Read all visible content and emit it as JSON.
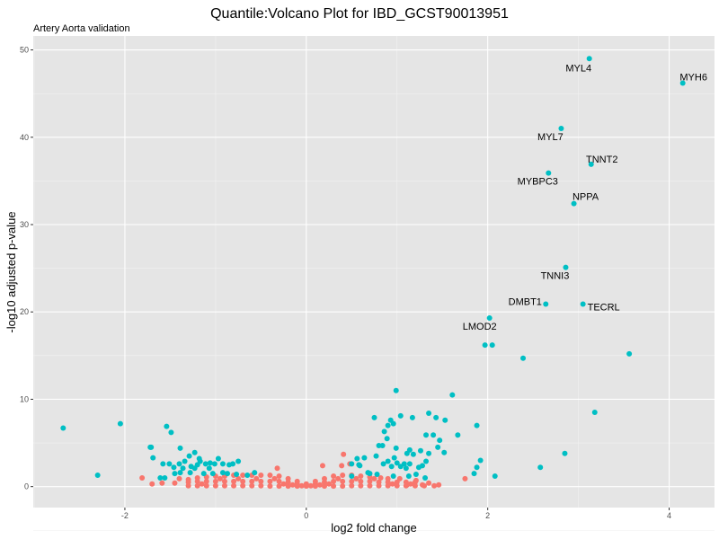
{
  "chart_data": {
    "type": "scatter",
    "title": "Quantile:Volcano Plot for IBD_GCST90013951",
    "subtitle": "Artery Aorta validation",
    "xlabel": "log2 fold change",
    "ylabel": "-log10 adjusted p-value",
    "xlim": [
      -3.01,
      4.5
    ],
    "ylim": [
      -2.4,
      51.6
    ],
    "xticks": [
      -2,
      0,
      2,
      4
    ],
    "yticks": [
      0,
      10,
      20,
      30,
      40,
      50
    ],
    "grid": true,
    "legend": "none",
    "colors": {
      "significant": "#00BFC4",
      "not_significant": "#F8766D",
      "panel": "#E5E5E5",
      "grid": "#FFFFFF"
    },
    "labeled_genes": [
      {
        "gene": "MYL4",
        "x": 3.12,
        "y": 49.0
      },
      {
        "gene": "MYH6",
        "x": 4.15,
        "y": 46.2
      },
      {
        "gene": "MYL7",
        "x": 2.81,
        "y": 41.0
      },
      {
        "gene": "TNNT2",
        "x": 3.14,
        "y": 36.9
      },
      {
        "gene": "MYBPC3",
        "x": 2.67,
        "y": 35.9
      },
      {
        "gene": "NPPA",
        "x": 2.95,
        "y": 32.4
      },
      {
        "gene": "TNNI3",
        "x": 2.86,
        "y": 25.1
      },
      {
        "gene": "DMBT1",
        "x": 2.64,
        "y": 20.9
      },
      {
        "gene": "TECRL",
        "x": 3.05,
        "y": 20.9
      },
      {
        "gene": "LMOD2",
        "x": 2.02,
        "y": 19.3
      }
    ],
    "significant_points": [
      [
        1.97,
        16.2
      ],
      [
        2.05,
        16.2
      ],
      [
        2.39,
        14.7
      ],
      [
        3.56,
        15.2
      ],
      [
        0.99,
        11.0
      ],
      [
        1.61,
        10.5
      ],
      [
        3.18,
        8.5
      ],
      [
        0.75,
        7.9
      ],
      [
        1.04,
        8.1
      ],
      [
        1.17,
        7.9
      ],
      [
        1.35,
        8.4
      ],
      [
        1.43,
        7.9
      ],
      [
        1.53,
        7.6
      ],
      [
        1.88,
        7.0
      ],
      [
        0.93,
        7.6
      ],
      [
        0.9,
        7.0
      ],
      [
        0.96,
        7.2
      ],
      [
        0.86,
        6.3
      ],
      [
        0.89,
        5.5
      ],
      [
        1.32,
        5.9
      ],
      [
        1.4,
        5.9
      ],
      [
        1.47,
        5.3
      ],
      [
        1.67,
        5.9
      ],
      [
        0.8,
        4.7
      ],
      [
        0.84,
        4.7
      ],
      [
        0.99,
        4.4
      ],
      [
        1.14,
        4.2
      ],
      [
        1.26,
        4.1
      ],
      [
        1.45,
        4.5
      ],
      [
        1.52,
        3.9
      ],
      [
        1.35,
        3.8
      ],
      [
        1.11,
        3.8
      ],
      [
        1.18,
        3.7
      ],
      [
        0.77,
        3.5
      ],
      [
        0.64,
        3.3
      ],
      [
        0.97,
        3.3
      ],
      [
        0.9,
        2.9
      ],
      [
        0.85,
        2.6
      ],
      [
        1.0,
        2.7
      ],
      [
        1.08,
        2.6
      ],
      [
        1.14,
        2.6
      ],
      [
        1.32,
        2.9
      ],
      [
        1.28,
        2.4
      ],
      [
        1.24,
        2.2
      ],
      [
        1.92,
        3.0
      ],
      [
        1.88,
        2.2
      ],
      [
        1.85,
        1.5
      ],
      [
        2.08,
        1.2
      ],
      [
        2.58,
        2.2
      ],
      [
        2.85,
        3.8
      ],
      [
        0.94,
        2.3
      ],
      [
        1.04,
        2.3
      ],
      [
        1.1,
        2.1
      ],
      [
        0.68,
        1.6
      ],
      [
        0.78,
        1.4
      ],
      [
        0.96,
        1.2
      ],
      [
        1.21,
        1.4
      ],
      [
        1.31,
        1.0
      ],
      [
        1.13,
        1.2
      ],
      [
        0.58,
        2.5
      ],
      [
        0.56,
        3.2
      ],
      [
        0.5,
        2.6
      ],
      [
        0.59,
        2.4
      ],
      [
        0.5,
        1.2
      ],
      [
        0.7,
        1.5
      ],
      [
        -2.68,
        6.7
      ],
      [
        -2.05,
        7.2
      ],
      [
        -2.3,
        1.3
      ],
      [
        -1.54,
        6.9
      ],
      [
        -1.49,
        6.2
      ],
      [
        -1.72,
        4.5
      ],
      [
        -1.71,
        4.5
      ],
      [
        -1.69,
        3.3
      ],
      [
        -1.39,
        4.4
      ],
      [
        -1.58,
        2.6
      ],
      [
        -1.51,
        2.6
      ],
      [
        -1.46,
        2.2
      ],
      [
        -1.4,
        2.6
      ],
      [
        -1.34,
        2.9
      ],
      [
        -1.29,
        3.5
      ],
      [
        -1.23,
        3.9
      ],
      [
        -1.18,
        3.2
      ],
      [
        -1.17,
        2.9
      ],
      [
        -1.2,
        2.5
      ],
      [
        -1.11,
        2.6
      ],
      [
        -1.06,
        2.7
      ],
      [
        -1.01,
        2.6
      ],
      [
        -0.97,
        3.2
      ],
      [
        -0.92,
        2.6
      ],
      [
        -0.85,
        2.5
      ],
      [
        -0.75,
        2.9
      ],
      [
        -0.81,
        2.6
      ],
      [
        -1.45,
        1.5
      ],
      [
        -1.36,
        2.1
      ],
      [
        -1.28,
        1.6
      ],
      [
        -1.23,
        2.1
      ],
      [
        -1.13,
        1.5
      ],
      [
        -1.07,
        2.1
      ],
      [
        -1.03,
        1.5
      ],
      [
        -1.61,
        1.0
      ],
      [
        -1.56,
        1.0
      ],
      [
        -0.92,
        1.6
      ],
      [
        -0.87,
        1.5
      ],
      [
        -0.77,
        1.4
      ],
      [
        -0.65,
        1.3
      ],
      [
        -0.57,
        1.6
      ],
      [
        -1.39,
        1.6
      ],
      [
        -1.27,
        2.3
      ]
    ],
    "not_significant_points": [
      [
        -1.81,
        1.0
      ],
      [
        -1.7,
        0.3
      ],
      [
        -1.59,
        0.4
      ],
      [
        -0.32,
        2.1
      ],
      [
        0.18,
        2.4
      ],
      [
        0.39,
        2.4
      ],
      [
        0.48,
        2.6
      ],
      [
        0.41,
        3.7
      ],
      [
        -1.4,
        0.9
      ],
      [
        -1.3,
        0.8
      ],
      [
        1.75,
        0.9
      ],
      [
        1.41,
        0.1
      ],
      [
        1.46,
        0.2
      ],
      [
        1.28,
        0.2
      ],
      [
        1.21,
        0.7
      ],
      [
        1.11,
        0.2
      ],
      [
        0.82,
        1.0
      ],
      [
        1.03,
        0.9
      ],
      [
        -1.3,
        0.1
      ],
      [
        -1.3,
        0.5
      ],
      [
        -1.2,
        0.1
      ],
      [
        -1.2,
        0.6
      ],
      [
        -1.2,
        1.0
      ],
      [
        -1.1,
        0.1
      ],
      [
        -1.1,
        0.6
      ],
      [
        -1.1,
        1.1
      ],
      [
        -1.0,
        0.1
      ],
      [
        -1.0,
        0.6
      ],
      [
        -1.0,
        1.2
      ],
      [
        -0.9,
        0.1
      ],
      [
        -0.9,
        0.6
      ],
      [
        -0.9,
        1.2
      ],
      [
        -0.8,
        0.1
      ],
      [
        -0.8,
        0.6
      ],
      [
        -0.8,
        1.3
      ],
      [
        -0.7,
        0.1
      ],
      [
        -0.7,
        0.6
      ],
      [
        -0.7,
        1.3
      ],
      [
        -0.6,
        0.1
      ],
      [
        -0.6,
        0.6
      ],
      [
        -0.6,
        1.3
      ],
      [
        -0.5,
        0.1
      ],
      [
        -0.5,
        0.6
      ],
      [
        -0.5,
        1.3
      ],
      [
        -0.4,
        0.05
      ],
      [
        -0.4,
        0.6
      ],
      [
        -0.4,
        1.3
      ],
      [
        -0.3,
        0.05
      ],
      [
        -0.3,
        0.6
      ],
      [
        -0.3,
        1.2
      ],
      [
        -0.2,
        0.05
      ],
      [
        -0.2,
        0.5
      ],
      [
        -0.2,
        0.9
      ],
      [
        -0.1,
        0.05
      ],
      [
        -0.1,
        0.3
      ],
      [
        -0.1,
        0.6
      ],
      [
        0.0,
        0.05
      ],
      [
        0.0,
        0.3
      ],
      [
        0.1,
        0.05
      ],
      [
        0.1,
        0.3
      ],
      [
        0.1,
        0.6
      ],
      [
        0.2,
        0.05
      ],
      [
        0.2,
        0.5
      ],
      [
        0.2,
        0.9
      ],
      [
        0.3,
        0.05
      ],
      [
        0.3,
        0.6
      ],
      [
        0.3,
        1.2
      ],
      [
        0.4,
        0.05
      ],
      [
        0.4,
        0.6
      ],
      [
        0.4,
        1.3
      ],
      [
        0.5,
        0.1
      ],
      [
        0.5,
        0.6
      ],
      [
        0.5,
        1.3
      ],
      [
        0.6,
        0.1
      ],
      [
        0.6,
        0.6
      ],
      [
        0.6,
        1.2
      ],
      [
        0.7,
        0.1
      ],
      [
        0.7,
        0.6
      ],
      [
        0.7,
        1.1
      ],
      [
        0.8,
        0.1
      ],
      [
        0.8,
        0.5
      ],
      [
        0.9,
        0.1
      ],
      [
        0.9,
        0.5
      ],
      [
        0.9,
        0.9
      ],
      [
        1.0,
        0.1
      ],
      [
        1.0,
        0.5
      ],
      [
        1.1,
        0.1
      ],
      [
        1.1,
        0.5
      ],
      [
        1.2,
        0.1
      ],
      [
        1.2,
        0.5
      ],
      [
        1.3,
        0.1
      ],
      [
        -1.45,
        0.4
      ],
      [
        -1.15,
        0.3
      ],
      [
        -0.95,
        0.9
      ],
      [
        -0.75,
        0.9
      ],
      [
        -0.55,
        0.9
      ],
      [
        -0.35,
        0.9
      ],
      [
        -0.25,
        0.3
      ],
      [
        -0.15,
        0.2
      ],
      [
        -0.05,
        0.1
      ],
      [
        0.05,
        0.1
      ],
      [
        0.15,
        0.2
      ],
      [
        0.25,
        0.3
      ],
      [
        0.35,
        0.9
      ],
      [
        0.55,
        0.9
      ],
      [
        0.75,
        0.9
      ],
      [
        0.95,
        0.3
      ],
      [
        1.15,
        0.3
      ],
      [
        1.35,
        0.4
      ]
    ]
  }
}
